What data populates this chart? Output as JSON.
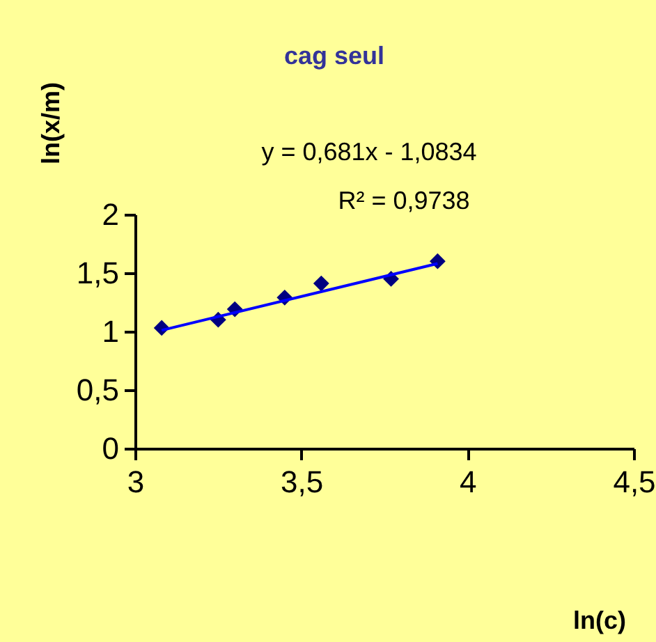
{
  "chart_data": {
    "type": "scatter",
    "title": "cag seul",
    "xlabel": "ln(c)",
    "ylabel": "ln(x/m)",
    "annotations": [
      "y = 0,681x - 1,0834",
      "R² = 0,9738"
    ],
    "series": [
      {
        "color": "#000080",
        "marker": "diamond",
        "x": [
          3.08,
          3.25,
          3.3,
          3.45,
          3.56,
          3.77,
          3.91
        ],
        "values": [
          1.03,
          1.1,
          1.19,
          1.29,
          1.41,
          1.45,
          1.6
        ]
      },
      {
        "type": "line",
        "color": "#0000ff",
        "line_style": "solid",
        "x": [
          3.08,
          3.91
        ],
        "values": [
          1.01,
          1.58
        ]
      }
    ],
    "xlim": [
      3,
      4.5
    ],
    "xticks": [
      3,
      {
        "value": 3.5,
        "label": "3,5"
      },
      4,
      {
        "value": 4.5,
        "label": "4,5"
      }
    ],
    "ylim": [
      0,
      2
    ],
    "yticks": [
      0,
      {
        "value": 0.5,
        "label": "0,5"
      },
      1,
      {
        "value": 1.5,
        "label": "1,5"
      },
      2
    ],
    "grid": false
  }
}
